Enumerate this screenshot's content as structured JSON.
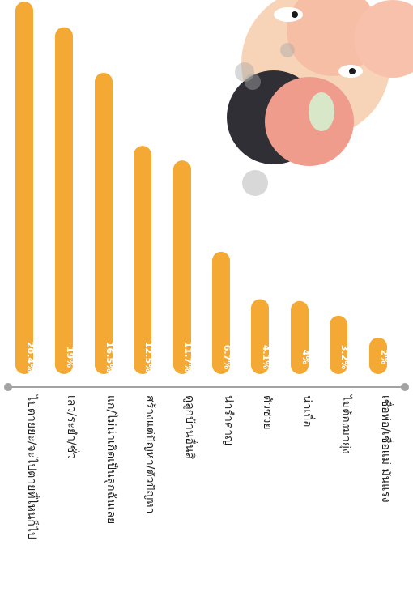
{
  "chart_data": {
    "type": "bar",
    "orientation": "vertical-rotated",
    "categories": [
      "ไปตายยะ/จะไปตายที่ไหนก็ไป",
      "เลว/ระยำ/ชั่ว",
      "แก/ไม่น่าเกิดเป็นลูกฉันเลย",
      "สร้างแต่ปัญหา/ตัวปัญหา",
      "ดูลูกบ้านอื่นสิ",
      "น่ารำคาญ",
      "ตัวซวย",
      "น่าเบื่อ",
      "ไม่ต้องมายุ่ง",
      "เชื่อพ่อ/เชื่อแม่ มันแรง"
    ],
    "values": [
      20.4,
      19,
      16.5,
      12.5,
      11.7,
      6.7,
      4.1,
      4,
      3.2,
      2
    ],
    "value_labels": [
      "20.4%",
      "19%",
      "16.5%",
      "12.5%",
      "11.7%",
      "6.7%",
      "4.1%",
      "4%",
      "3.2%",
      "2%"
    ],
    "ylim": [
      0,
      20.4
    ],
    "colors": {
      "bar": "#f3a933",
      "axis": "#a3a3a3",
      "text": "#1f1f1f",
      "value_text": "#ffffff"
    }
  },
  "decor": {
    "illustration": "angry-parents-and-child-cartoon"
  }
}
